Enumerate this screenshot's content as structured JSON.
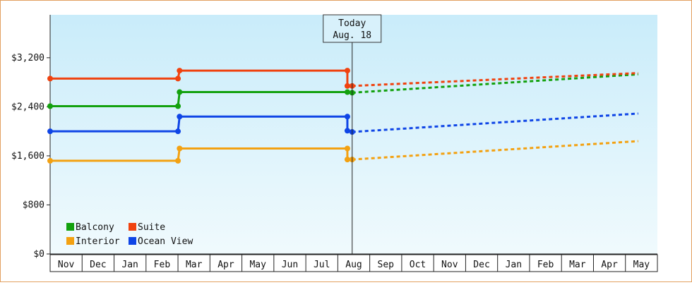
{
  "chart_data": {
    "type": "line",
    "title": "",
    "xlabel": "",
    "ylabel": "",
    "ylim": [
      0,
      3900
    ],
    "yticks": [
      0,
      800,
      1600,
      2400,
      3200
    ],
    "ytick_labels": [
      "$0",
      "$800",
      "$1,600",
      "$2,400",
      "$3,200"
    ],
    "months": [
      "Nov",
      "Dec",
      "Jan",
      "Feb",
      "Mar",
      "Apr",
      "May",
      "Jun",
      "Jul",
      "Aug",
      "Sep",
      "Oct",
      "Nov",
      "Dec",
      "Jan",
      "Feb",
      "Mar",
      "Apr",
      "May"
    ],
    "today_marker": {
      "line1": "Today",
      "line2": "Aug. 18",
      "month_index": 9.45
    },
    "legend": {
      "placement": "bottom-left",
      "grid": false
    },
    "series": [
      {
        "name": "Balcony",
        "color": "#13a10e",
        "actual": [
          [
            0,
            2410
          ],
          [
            4,
            2410
          ],
          [
            4.05,
            2640
          ],
          [
            9.3,
            2640
          ],
          [
            9.45,
            2630
          ]
        ],
        "forecast": [
          [
            9.45,
            2630
          ],
          [
            18.4,
            2930
          ]
        ]
      },
      {
        "name": "Suite",
        "color": "#f0420f",
        "actual": [
          [
            0,
            2860
          ],
          [
            4,
            2860
          ],
          [
            4.05,
            2990
          ],
          [
            9.3,
            2990
          ],
          [
            9.3,
            2740
          ],
          [
            9.45,
            2740
          ]
        ],
        "forecast": [
          [
            9.45,
            2740
          ],
          [
            18.4,
            2950
          ]
        ]
      },
      {
        "name": "Interior",
        "color": "#f3a111",
        "actual": [
          [
            0,
            1520
          ],
          [
            4,
            1520
          ],
          [
            4.05,
            1720
          ],
          [
            9.3,
            1720
          ],
          [
            9.3,
            1540
          ],
          [
            9.45,
            1540
          ]
        ],
        "forecast": [
          [
            9.45,
            1540
          ],
          [
            18.4,
            1840
          ]
        ]
      },
      {
        "name": "Ocean View",
        "color": "#0f45e6",
        "actual": [
          [
            0,
            2000
          ],
          [
            4,
            2000
          ],
          [
            4.05,
            2240
          ],
          [
            9.3,
            2240
          ],
          [
            9.3,
            2010
          ],
          [
            9.45,
            1990
          ]
        ],
        "forecast": [
          [
            9.45,
            1990
          ],
          [
            18.4,
            2290
          ]
        ]
      }
    ]
  }
}
